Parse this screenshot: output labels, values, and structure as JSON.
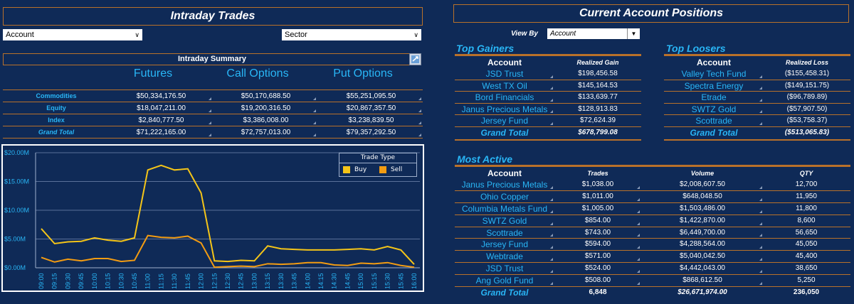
{
  "intraday": {
    "title": "Intraday Trades",
    "account_dd": "Account",
    "sector_dd": "Sector",
    "summary_title": "Intraday Summary",
    "columns": [
      "Futures",
      "Call Options",
      "Put Options"
    ],
    "rows": [
      {
        "label": "Commodities",
        "futures": "$50,334,176.50",
        "call": "$50,170,688.50",
        "put": "$55,251,095.50"
      },
      {
        "label": "Equity",
        "futures": "$18,047,211.00",
        "call": "$19,200,316.50",
        "put": "$20,867,357.50"
      },
      {
        "label": "Index",
        "futures": "$2,840,777.50",
        "call": "$3,386,008.00",
        "put": "$3,238,839.50"
      },
      {
        "label": "Grand Total",
        "futures": "$71,222,165.00",
        "call": "$72,757,013.00",
        "put": "$79,357,292.50"
      }
    ]
  },
  "positions": {
    "title": "Current Account Positions",
    "view_by_label": "View By",
    "view_by_value": "Account"
  },
  "top_gainers": {
    "title": "Top Gainers",
    "col_account": "Account",
    "col_value": "Realized Gain",
    "rows": [
      {
        "account": "JSD Trust",
        "value": "$198,456.58"
      },
      {
        "account": "West TX Oil",
        "value": "$145,164.53"
      },
      {
        "account": "Bord Financials",
        "value": "$133,639.77"
      },
      {
        "account": "Janus Precious Metals",
        "value": "$128,913.83"
      },
      {
        "account": "Jersey Fund",
        "value": "$72,624.39"
      }
    ],
    "total_label": "Grand Total",
    "total_value": "$678,799.08"
  },
  "top_losers": {
    "title": "Top Loosers",
    "col_account": "Account",
    "col_value": "Realized Loss",
    "rows": [
      {
        "account": "Valley Tech Fund",
        "value": "($155,458.31)"
      },
      {
        "account": "Spectra Energy",
        "value": "($149,151.75)"
      },
      {
        "account": "Etrade",
        "value": "($96,789.89)"
      },
      {
        "account": "SWTZ Gold",
        "value": "($57,907.50)"
      },
      {
        "account": "Scottrade",
        "value": "($53,758.37)"
      }
    ],
    "total_label": "Grand Total",
    "total_value": "($513,065.83)"
  },
  "most_active": {
    "title": "Most Active",
    "col_account": "Account",
    "col_trades": "Trades",
    "col_volume": "Volume",
    "col_qty": "QTY",
    "rows": [
      {
        "account": "Janus Precious Metals",
        "trades": "$1,038.00",
        "volume": "$2,008,607.50",
        "qty": "12,700"
      },
      {
        "account": "Ohio Copper",
        "trades": "$1,011.00",
        "volume": "$648,048.50",
        "qty": "11,950"
      },
      {
        "account": "Columbia Metals Fund",
        "trades": "$1,005.00",
        "volume": "$1,503,486.00",
        "qty": "11,800"
      },
      {
        "account": "SWTZ Gold",
        "trades": "$854.00",
        "volume": "$1,422,870.00",
        "qty": "8,600"
      },
      {
        "account": "Scottrade",
        "trades": "$743.00",
        "volume": "$6,449,700.00",
        "qty": "56,650"
      },
      {
        "account": "Jersey Fund",
        "trades": "$594.00",
        "volume": "$4,288,564.00",
        "qty": "45,050"
      },
      {
        "account": "Webtrade",
        "trades": "$571.00",
        "volume": "$5,040,042.50",
        "qty": "45,400"
      },
      {
        "account": "JSD Trust",
        "trades": "$524.00",
        "volume": "$4,442,043.00",
        "qty": "38,650"
      },
      {
        "account": "Ang Gold Fund",
        "trades": "$508.00",
        "volume": "$868,612.50",
        "qty": "5,250"
      }
    ],
    "total_label": "Grand Total",
    "total_trades": "6,848",
    "total_volume": "$26,671,974.00",
    "total_qty": "236,050"
  },
  "colors": {
    "background": "#0f2a57",
    "accent": "#b9712a",
    "label": "#29b6f6",
    "buy": "#f5c518",
    "sell": "#f39c12"
  },
  "chart_data": {
    "type": "line",
    "legend_title": "Trade Type",
    "ylim": [
      0,
      20
    ],
    "y_ticks": [
      "$0.00M",
      "$5.00M",
      "$10.00M",
      "$15.00M",
      "$20.00M"
    ],
    "categories": [
      "09:00",
      "09:15",
      "09:30",
      "09:45",
      "10:00",
      "10:15",
      "10:30",
      "10:45",
      "11:00",
      "11:15",
      "11:30",
      "11:45",
      "12:00",
      "12:15",
      "12:30",
      "12:45",
      "13:00",
      "13:15",
      "13:30",
      "13:45",
      "14:00",
      "14:15",
      "14:30",
      "14:45",
      "15:00",
      "15:15",
      "15:30",
      "15:45",
      "16:00"
    ],
    "series": [
      {
        "name": "Buy",
        "color": "#f5c518",
        "values": [
          6.8,
          4.2,
          4.5,
          4.6,
          5.2,
          4.8,
          4.6,
          5.2,
          17.0,
          17.8,
          17.0,
          17.2,
          13.0,
          1.2,
          1.1,
          1.3,
          1.2,
          3.8,
          3.3,
          3.2,
          3.1,
          3.1,
          3.1,
          3.2,
          3.3,
          3.1,
          3.7,
          3.1,
          0.6
        ]
      },
      {
        "name": "Sell",
        "color": "#f39c12",
        "values": [
          1.8,
          1.0,
          1.5,
          1.2,
          1.6,
          1.6,
          1.1,
          1.3,
          5.6,
          5.3,
          5.2,
          5.5,
          4.3,
          0.1,
          0.2,
          0.3,
          0.2,
          0.7,
          0.6,
          0.7,
          0.9,
          0.9,
          0.5,
          0.4,
          0.8,
          0.7,
          0.9,
          0.4,
          0.1
        ]
      }
    ]
  }
}
